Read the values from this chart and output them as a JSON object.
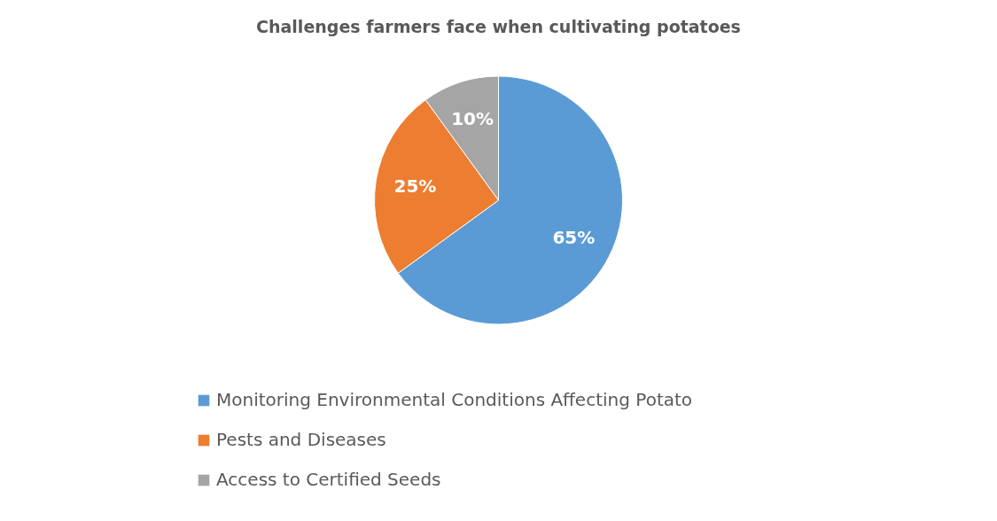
{
  "chart_data": {
    "type": "pie",
    "title": "Challenges farmers face when cultivating potatoes",
    "categories": [
      "Monitoring Environmental Conditions Affecting Potato",
      "Pests and Diseases",
      "Access to Certified Seeds"
    ],
    "values": [
      65,
      25,
      10
    ],
    "colors": [
      "#5b9bd5",
      "#ed7d31",
      "#a5a5a5"
    ],
    "value_labels": [
      "65%",
      "25%",
      "10%"
    ],
    "legend": "bottom"
  }
}
